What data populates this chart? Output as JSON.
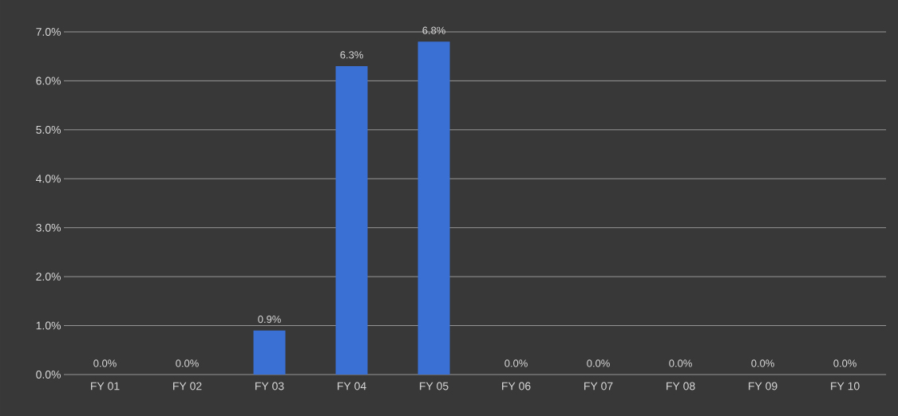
{
  "chart_data": {
    "type": "bar",
    "categories": [
      "FY 01",
      "FY 02",
      "FY 03",
      "FY 04",
      "FY 05",
      "FY 06",
      "FY 07",
      "FY 08",
      "FY 09",
      "FY 10"
    ],
    "values": [
      0,
      0,
      0.9,
      6.3,
      6.8,
      0,
      0,
      0,
      0,
      0
    ],
    "value_labels": [
      "0.0%",
      "0.0%",
      "0.9%",
      "6.3%",
      "6.8%",
      "0.0%",
      "0.0%",
      "0.0%",
      "0.0%",
      "0.0%"
    ],
    "color": "#3a6fd4",
    "ylim": [
      0,
      7
    ],
    "yticks": [
      {
        "value": 0,
        "label": "0.0%"
      },
      {
        "value": 1,
        "label": "1.0%"
      },
      {
        "value": 2,
        "label": "2.0%"
      },
      {
        "value": 3,
        "label": "3.0%"
      },
      {
        "value": 4,
        "label": "4.0%"
      },
      {
        "value": 5,
        "label": "5.0%"
      },
      {
        "value": 6,
        "label": "6.0%"
      },
      {
        "value": 7,
        "label": "7.0%"
      }
    ],
    "grid": "y"
  }
}
